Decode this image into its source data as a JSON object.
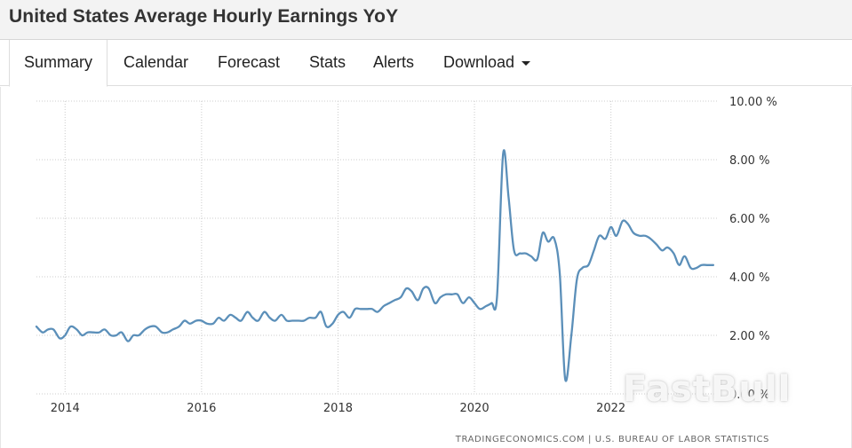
{
  "header": {
    "title": "United States Average Hourly Earnings YoY"
  },
  "tabs": [
    {
      "label": "Summary",
      "active": true
    },
    {
      "label": "Calendar"
    },
    {
      "label": "Forecast"
    },
    {
      "label": "Stats"
    },
    {
      "label": "Alerts"
    },
    {
      "label": "Download"
    }
  ],
  "source": "TRADINGECONOMICS.COM  |  U.S. BUREAU OF LABOR STATISTICS",
  "watermark": "FastBull",
  "colors": {
    "line": "#5b8fb9",
    "grid": "#cccccc",
    "text": "#333333"
  },
  "chart_data": {
    "type": "line",
    "title": "",
    "xlabel": "",
    "ylabel": "",
    "ylim": [
      0,
      10
    ],
    "xlim": [
      2013.58,
      2023.58
    ],
    "yticks": [
      {
        "value": 0,
        "label": "0.00 %"
      },
      {
        "value": 2,
        "label": "2.00 %"
      },
      {
        "value": 4,
        "label": "4.00 %"
      },
      {
        "value": 6,
        "label": "6.00 %"
      },
      {
        "value": 8,
        "label": "8.00 %"
      },
      {
        "value": 10,
        "label": "10.00 %"
      }
    ],
    "xticks": [
      {
        "value": 2014,
        "label": "2014"
      },
      {
        "value": 2016,
        "label": "2016"
      },
      {
        "value": 2018,
        "label": "2018"
      },
      {
        "value": 2020,
        "label": "2020"
      },
      {
        "value": 2022,
        "label": "2022"
      }
    ],
    "grid": true,
    "series": [
      {
        "x": [
          2013.58,
          2013.67,
          2013.75,
          2013.83,
          2013.92,
          2014.0,
          2014.08,
          2014.17,
          2014.25,
          2014.33,
          2014.42,
          2014.5,
          2014.58,
          2014.67,
          2014.75,
          2014.83,
          2014.92,
          2015.0,
          2015.08,
          2015.17,
          2015.25,
          2015.33,
          2015.42,
          2015.5,
          2015.58,
          2015.67,
          2015.75,
          2015.83,
          2015.92,
          2016.0,
          2016.08,
          2016.17,
          2016.25,
          2016.33,
          2016.42,
          2016.5,
          2016.58,
          2016.67,
          2016.75,
          2016.83,
          2016.92,
          2017.0,
          2017.08,
          2017.17,
          2017.25,
          2017.33,
          2017.42,
          2017.5,
          2017.58,
          2017.67,
          2017.75,
          2017.83,
          2017.92,
          2018.0,
          2018.08,
          2018.17,
          2018.25,
          2018.33,
          2018.42,
          2018.5,
          2018.58,
          2018.67,
          2018.75,
          2018.83,
          2018.92,
          2019.0,
          2019.08,
          2019.17,
          2019.25,
          2019.33,
          2019.42,
          2019.5,
          2019.58,
          2019.67,
          2019.75,
          2019.83,
          2019.92,
          2020.0,
          2020.08,
          2020.17,
          2020.25,
          2020.33,
          2020.42,
          2020.5,
          2020.58,
          2020.67,
          2020.75,
          2020.83,
          2020.92,
          2021.0,
          2021.08,
          2021.17,
          2021.25,
          2021.33,
          2021.42,
          2021.5,
          2021.58,
          2021.67,
          2021.75,
          2021.83,
          2021.92,
          2022.0,
          2022.08,
          2022.17,
          2022.25,
          2022.33,
          2022.42,
          2022.5,
          2022.58,
          2022.67,
          2022.75,
          2022.83,
          2022.92,
          2023.0,
          2023.08,
          2023.17,
          2023.25,
          2023.33,
          2023.42,
          2023.5
        ],
        "values": [
          2.3,
          2.1,
          2.2,
          2.2,
          1.9,
          2.0,
          2.3,
          2.2,
          2.0,
          2.1,
          2.1,
          2.1,
          2.2,
          2.0,
          2.0,
          2.1,
          1.8,
          2.0,
          2.0,
          2.2,
          2.3,
          2.3,
          2.1,
          2.1,
          2.2,
          2.3,
          2.5,
          2.4,
          2.5,
          2.5,
          2.4,
          2.4,
          2.6,
          2.5,
          2.7,
          2.6,
          2.5,
          2.8,
          2.6,
          2.5,
          2.8,
          2.6,
          2.5,
          2.7,
          2.5,
          2.5,
          2.5,
          2.5,
          2.6,
          2.6,
          2.8,
          2.3,
          2.4,
          2.7,
          2.8,
          2.6,
          2.9,
          2.9,
          2.9,
          2.9,
          2.8,
          3.0,
          3.1,
          3.2,
          3.3,
          3.6,
          3.5,
          3.2,
          3.6,
          3.6,
          3.1,
          3.3,
          3.4,
          3.4,
          3.4,
          3.1,
          3.3,
          3.1,
          2.9,
          3.0,
          3.1,
          3.3,
          8.2,
          6.7,
          4.9,
          4.8,
          4.8,
          4.7,
          4.6,
          5.5,
          5.2,
          5.3,
          4.1,
          0.5,
          2.0,
          3.9,
          4.3,
          4.4,
          4.9,
          5.4,
          5.3,
          5.7,
          5.4,
          5.9,
          5.8,
          5.5,
          5.4,
          5.4,
          5.3,
          5.1,
          4.9,
          5.0,
          4.8,
          4.4,
          4.7,
          4.3,
          4.3,
          4.4,
          4.4,
          4.4
        ]
      }
    ]
  }
}
